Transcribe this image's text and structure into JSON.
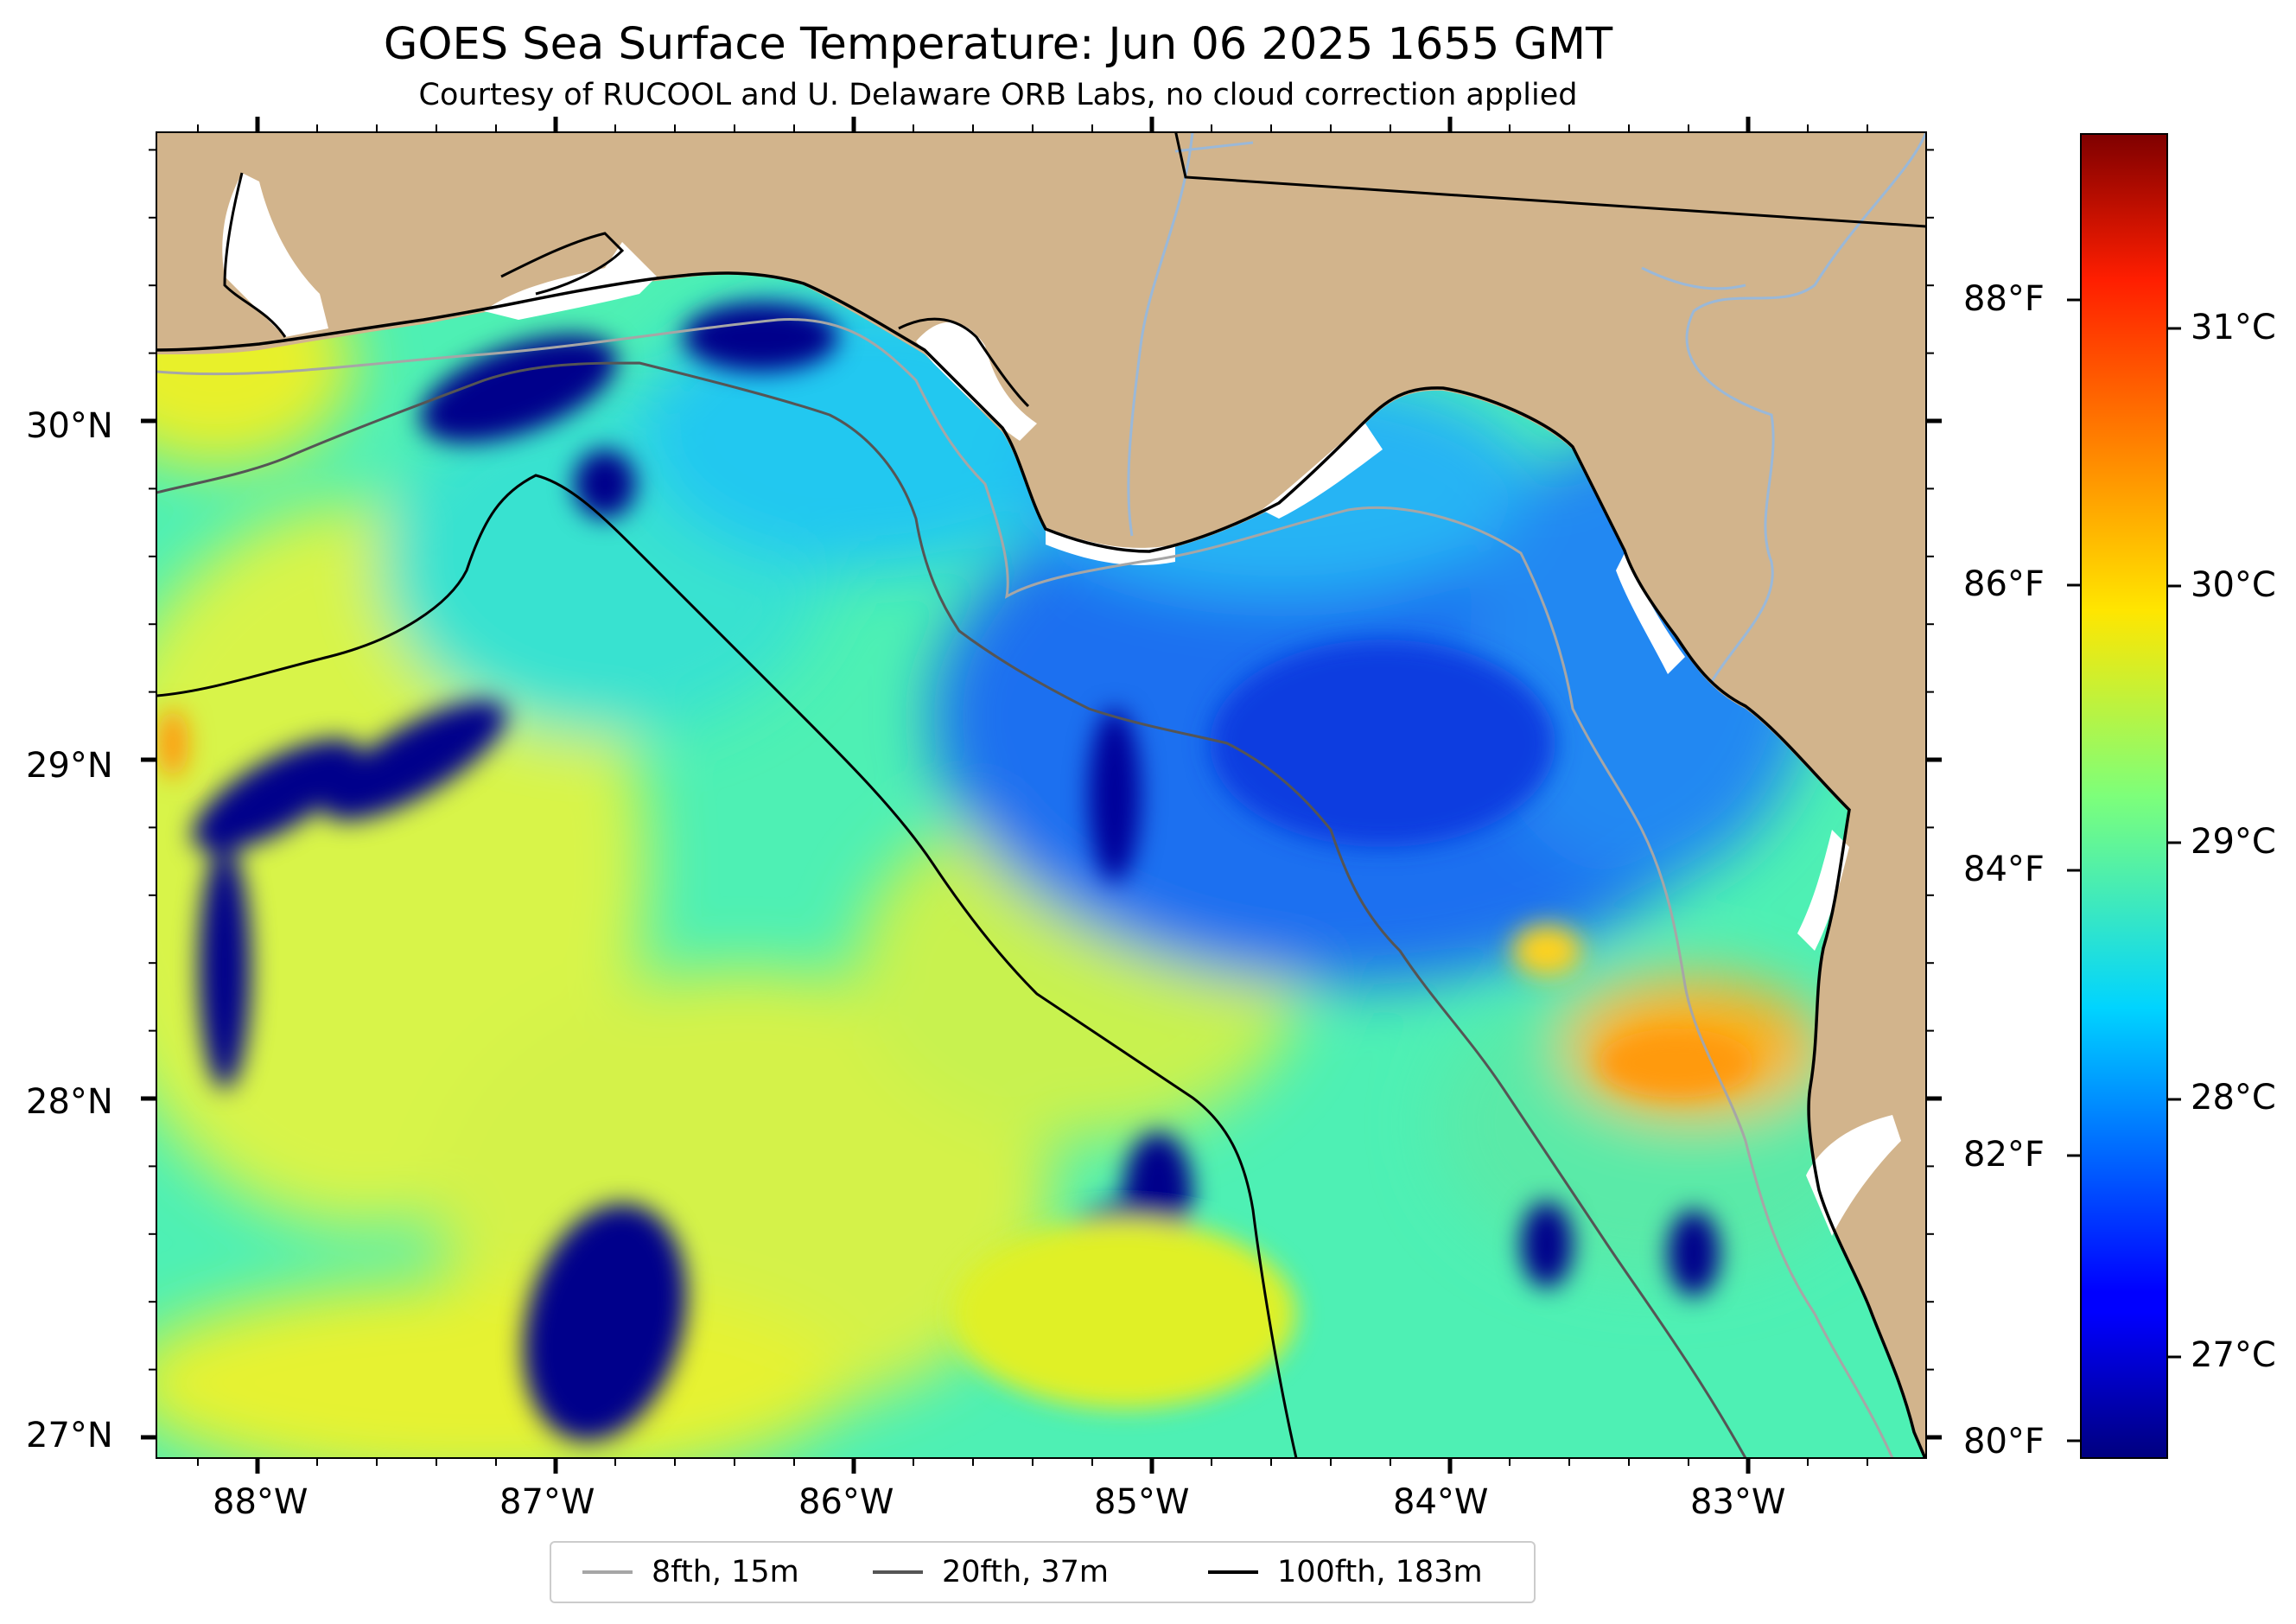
{
  "title": "GOES Sea Surface Temperature: Jun 06 2025 1655 GMT",
  "subtitle": "Courtesy of RUCOOL and U. Delaware ORB Labs, no cloud correction applied",
  "map": {
    "lon_labels": [
      "88°W",
      "87°W",
      "86°W",
      "85°W",
      "84°W",
      "83°W"
    ],
    "lat_labels": [
      "27°N",
      "28°N",
      "29°N",
      "30°N"
    ],
    "colors": {
      "land": "#d2b48c",
      "coast": "#000000",
      "cold": "#00008b",
      "warm": "#e8f020"
    }
  },
  "colorbar": {
    "celsius_labels": [
      "27°C",
      "28°C",
      "29°C",
      "30°C",
      "31°C"
    ],
    "fahrenheit_labels": [
      "80°F",
      "82°F",
      "84°F",
      "86°F",
      "88°F"
    ],
    "colormap": "jet"
  },
  "legend": {
    "items": [
      {
        "label": "8fth, 15m",
        "color": "#a6a6a6"
      },
      {
        "label": "20fth, 37m",
        "color": "#555555"
      },
      {
        "label": "100fth, 183m",
        "color": "#000000"
      }
    ]
  }
}
